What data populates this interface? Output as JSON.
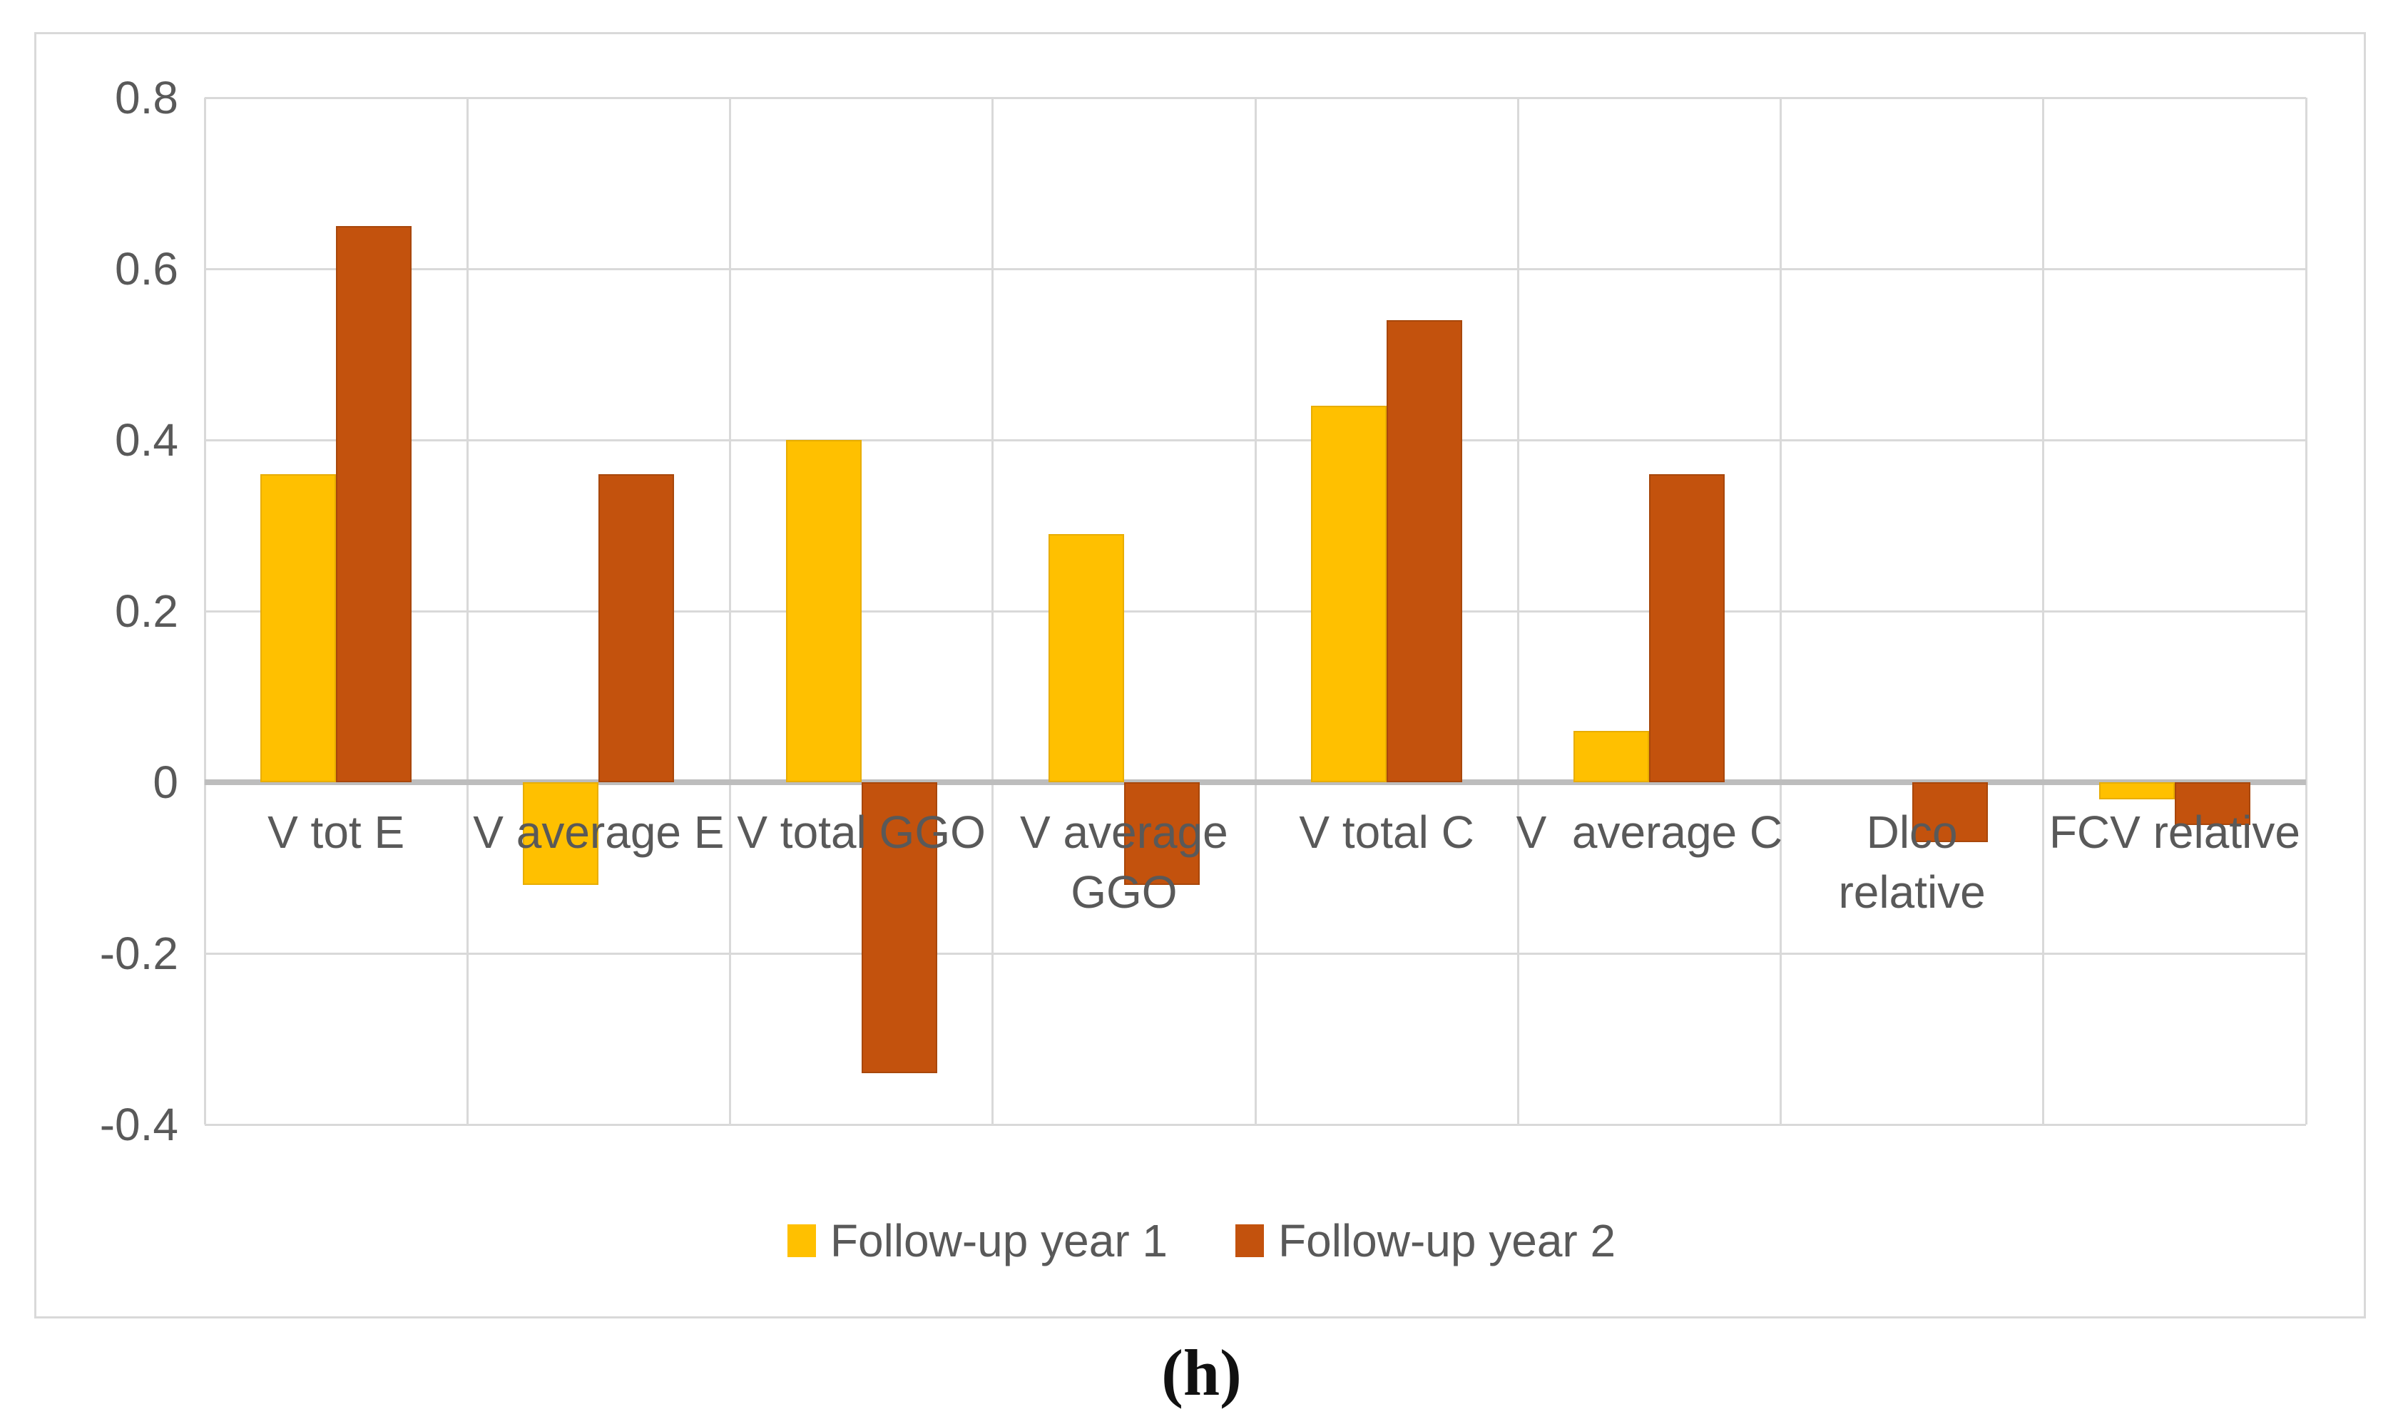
{
  "figure": {
    "caption": "(h)"
  },
  "chart_data": {
    "type": "bar",
    "title": "",
    "xlabel": "",
    "ylabel": "",
    "categories": [
      "V tot E",
      "V average E",
      "V total GGO",
      "V average\nGGO",
      "V total C",
      "V  average C",
      "Dlco\nrelative",
      "FCV relative"
    ],
    "series": [
      {
        "name": "Follow-up year 1",
        "color": "#FFC000",
        "border_color": "#e8ad00",
        "values": [
          0.36,
          -0.12,
          0.4,
          0.29,
          0.44,
          0.06,
          0,
          -0.02
        ]
      },
      {
        "name": "Follow-up year 2",
        "color": "#C3520D",
        "border_color": "#a8470b",
        "values": [
          0.65,
          0.36,
          -0.34,
          -0.12,
          0.54,
          0.36,
          -0.07,
          -0.05
        ]
      }
    ],
    "ylim": [
      -0.4,
      0.8
    ],
    "yticks": [
      0.8,
      0.6,
      0.4,
      0.2,
      0,
      -0.2,
      -0.4
    ],
    "ytick_labels": [
      "0.8",
      "0.6",
      "0.4",
      "0.2",
      "0",
      "-0.2",
      "-0.4"
    ],
    "grid": true,
    "legend_position": "bottom",
    "colors": {
      "gridline": "#d9d9d9",
      "zero_line": "#bdbdbd",
      "axis_text": "#595959",
      "frame_border": "#d9d9d9",
      "background": "#ffffff"
    }
  }
}
